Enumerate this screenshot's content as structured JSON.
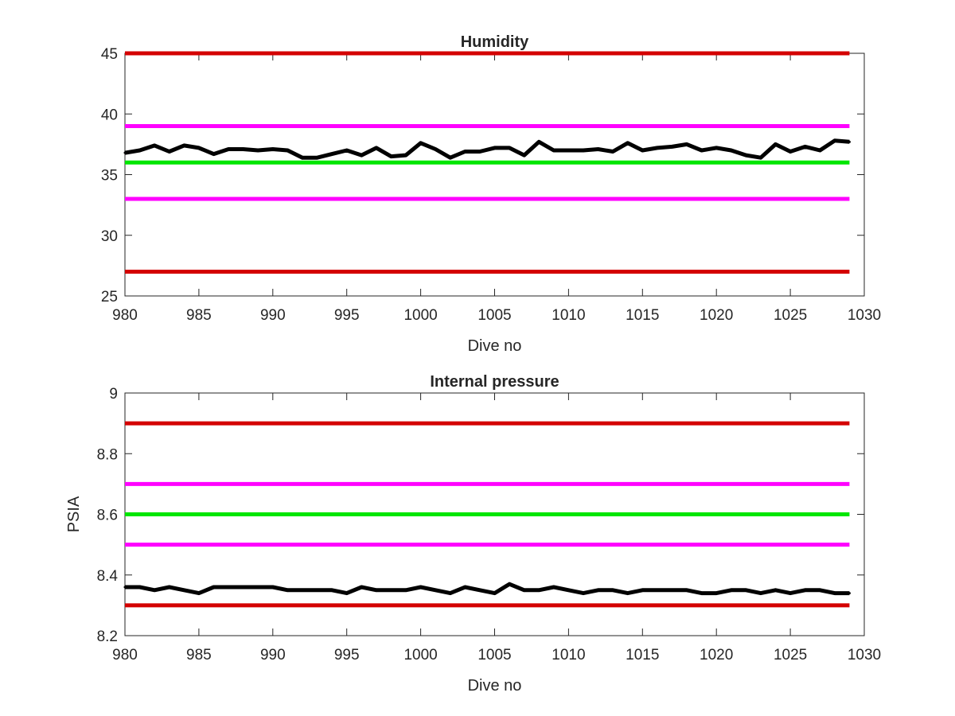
{
  "chart_data": [
    {
      "type": "line",
      "title": "Humidity",
      "xlabel": "Dive no",
      "ylabel": "",
      "xlim": [
        980,
        1030
      ],
      "ylim": [
        25,
        45
      ],
      "xticks": [
        980,
        985,
        990,
        995,
        1000,
        1005,
        1010,
        1015,
        1020,
        1025,
        1030
      ],
      "yticks": [
        25,
        30,
        35,
        40,
        45
      ],
      "grid": false,
      "reference_lines": [
        {
          "y": 45,
          "color": "#d40000"
        },
        {
          "y": 39,
          "color": "#ff00ff"
        },
        {
          "y": 36,
          "color": "#00e600"
        },
        {
          "y": 33,
          "color": "#ff00ff"
        },
        {
          "y": 27,
          "color": "#d40000"
        }
      ],
      "series": [
        {
          "color": "#000000",
          "x": [
            980,
            981,
            982,
            983,
            984,
            985,
            986,
            987,
            988,
            989,
            990,
            991,
            992,
            993,
            994,
            995,
            996,
            997,
            998,
            999,
            1000,
            1001,
            1002,
            1003,
            1004,
            1005,
            1006,
            1007,
            1008,
            1009,
            1010,
            1011,
            1012,
            1013,
            1014,
            1015,
            1016,
            1017,
            1018,
            1019,
            1020,
            1021,
            1022,
            1023,
            1024,
            1025,
            1026,
            1027,
            1028,
            1029
          ],
          "values": [
            36.8,
            37.0,
            37.4,
            36.9,
            37.4,
            37.2,
            36.7,
            37.1,
            37.1,
            37.0,
            37.1,
            37.0,
            36.4,
            36.4,
            36.7,
            37.0,
            36.6,
            37.2,
            36.5,
            36.6,
            37.6,
            37.1,
            36.4,
            36.9,
            36.9,
            37.2,
            37.2,
            36.6,
            37.7,
            37.0,
            37.0,
            37.0,
            37.1,
            36.9,
            37.6,
            37.0,
            37.2,
            37.3,
            37.5,
            37.0,
            37.2,
            37.0,
            36.6,
            36.4,
            37.5,
            36.9,
            37.3,
            37.0,
            37.8,
            37.7
          ]
        }
      ]
    },
    {
      "type": "line",
      "title": "Internal pressure",
      "xlabel": "Dive no",
      "ylabel": "PSIA",
      "xlim": [
        980,
        1030
      ],
      "ylim": [
        8.2,
        9
      ],
      "xticks": [
        980,
        985,
        990,
        995,
        1000,
        1005,
        1010,
        1015,
        1020,
        1025,
        1030
      ],
      "yticks": [
        8.2,
        8.4,
        8.6,
        8.8,
        9
      ],
      "ytick_labels": [
        "8.2",
        "8.4",
        "8.6",
        "8.8",
        "9"
      ],
      "grid": false,
      "reference_lines": [
        {
          "y": 8.9,
          "color": "#d40000"
        },
        {
          "y": 8.7,
          "color": "#ff00ff"
        },
        {
          "y": 8.6,
          "color": "#00e600"
        },
        {
          "y": 8.5,
          "color": "#ff00ff"
        },
        {
          "y": 8.3,
          "color": "#d40000"
        }
      ],
      "series": [
        {
          "color": "#000000",
          "x": [
            980,
            981,
            982,
            983,
            984,
            985,
            986,
            987,
            988,
            989,
            990,
            991,
            992,
            993,
            994,
            995,
            996,
            997,
            998,
            999,
            1000,
            1001,
            1002,
            1003,
            1004,
            1005,
            1006,
            1007,
            1008,
            1009,
            1010,
            1011,
            1012,
            1013,
            1014,
            1015,
            1016,
            1017,
            1018,
            1019,
            1020,
            1021,
            1022,
            1023,
            1024,
            1025,
            1026,
            1027,
            1028,
            1029
          ],
          "values": [
            8.36,
            8.36,
            8.35,
            8.36,
            8.35,
            8.34,
            8.36,
            8.36,
            8.36,
            8.36,
            8.36,
            8.35,
            8.35,
            8.35,
            8.35,
            8.34,
            8.36,
            8.35,
            8.35,
            8.35,
            8.36,
            8.35,
            8.34,
            8.36,
            8.35,
            8.34,
            8.37,
            8.35,
            8.35,
            8.36,
            8.35,
            8.34,
            8.35,
            8.35,
            8.34,
            8.35,
            8.35,
            8.35,
            8.35,
            8.34,
            8.34,
            8.35,
            8.35,
            8.34,
            8.35,
            8.34,
            8.35,
            8.35,
            8.34,
            8.34
          ]
        }
      ]
    }
  ]
}
